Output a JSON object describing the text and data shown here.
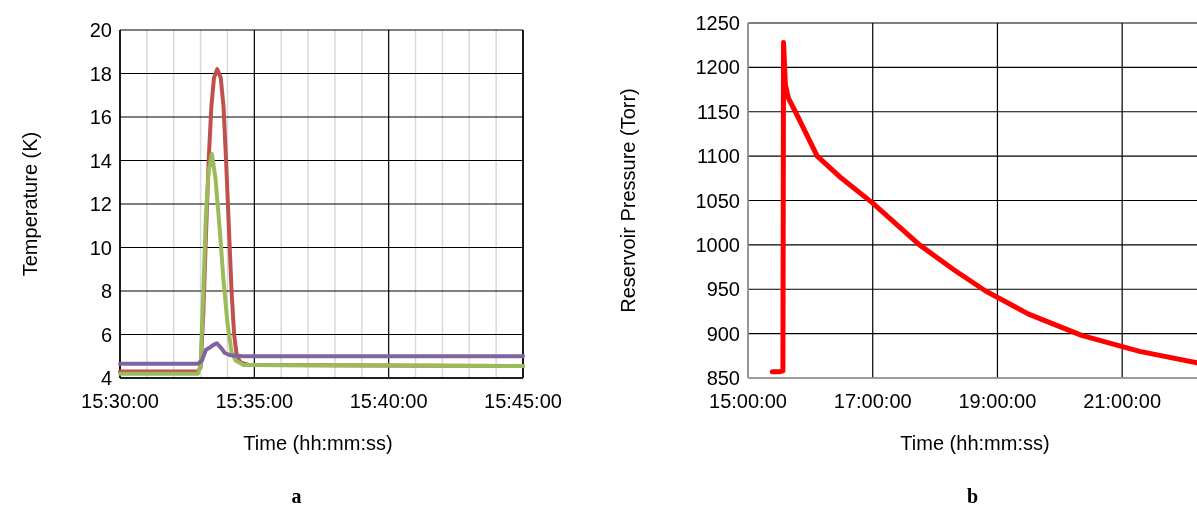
{
  "chart_data": [
    {
      "type": "line",
      "xlabel": "Time (hh:mm:ss)",
      "ylabel": "Temperature (K)",
      "annotations": [
        "a"
      ],
      "grid": true,
      "xlim": [
        15.5,
        15.75
      ],
      "ylim": [
        4,
        20
      ],
      "xticks": [
        {
          "value": 15.5,
          "label": "15:30:00"
        },
        {
          "value": 15.51667,
          "label": null
        },
        {
          "value": 15.53333,
          "label": null
        },
        {
          "value": 15.55,
          "label": null
        },
        {
          "value": 15.56667,
          "label": null
        },
        {
          "value": 15.58333,
          "label": "15:35:00"
        },
        {
          "value": 15.6,
          "label": null
        },
        {
          "value": 15.61667,
          "label": null
        },
        {
          "value": 15.63333,
          "label": null
        },
        {
          "value": 15.65,
          "label": null
        },
        {
          "value": 15.66667,
          "label": "15:40:00"
        },
        {
          "value": 15.68333,
          "label": null
        },
        {
          "value": 15.7,
          "label": null
        },
        {
          "value": 15.71667,
          "label": null
        },
        {
          "value": 15.73333,
          "label": null
        },
        {
          "value": 15.75,
          "label": "15:45:00"
        }
      ],
      "yticks": [
        4,
        6,
        8,
        10,
        12,
        14,
        16,
        18,
        20
      ],
      "series": [
        {
          "color": "#c0504d",
          "x": [
            15.5,
            15.5483,
            15.55,
            15.5517,
            15.5533,
            15.555,
            15.5567,
            15.5583,
            15.5603,
            15.5625,
            15.5642,
            15.5658,
            15.5675,
            15.5692,
            15.5708,
            15.5725,
            15.575,
            15.58,
            15.75
          ],
          "values": [
            4.3,
            4.3,
            4.5,
            7,
            10.5,
            14,
            16.5,
            17.8,
            18.2,
            17.8,
            16.5,
            14,
            11,
            8,
            6,
            5,
            4.7,
            4.6,
            4.55
          ]
        },
        {
          "color": "#9bbb59",
          "x": [
            15.5,
            15.5483,
            15.55,
            15.5517,
            15.5533,
            15.555,
            15.557,
            15.5592,
            15.5617,
            15.5642,
            15.5667,
            15.5692,
            15.5717,
            15.5767,
            15.75
          ],
          "values": [
            4.2,
            4.2,
            4.6,
            8,
            11.5,
            13.5,
            14.3,
            13.2,
            11,
            8.5,
            6.5,
            5.2,
            4.8,
            4.6,
            4.55
          ]
        },
        {
          "color": "#8064a2",
          "x": [
            15.5,
            15.5483,
            15.5508,
            15.5533,
            15.5558,
            15.5575,
            15.56,
            15.5625,
            15.565,
            15.5683,
            15.5767,
            15.75
          ],
          "values": [
            4.65,
            4.65,
            4.8,
            5.3,
            5.4,
            5.5,
            5.6,
            5.4,
            5.15,
            5.05,
            5.0,
            5.0
          ]
        }
      ]
    },
    {
      "type": "line",
      "xlabel": "Time (hh:mm:ss)",
      "ylabel": "Reservoir Pressure (Torr)",
      "annotations": [
        "b"
      ],
      "grid": true,
      "xlim": [
        15,
        22.2
      ],
      "ylim": [
        850,
        1250
      ],
      "xticks": [
        {
          "value": 15,
          "label": "15:00:00"
        },
        {
          "value": 17,
          "label": "17:00:00"
        },
        {
          "value": 19,
          "label": "19:00:00"
        },
        {
          "value": 21,
          "label": "21:00:00"
        }
      ],
      "yticks": [
        850,
        900,
        950,
        1000,
        1050,
        1100,
        1150,
        1200,
        1250
      ],
      "series": [
        {
          "color": "#ff0000",
          "x": [
            15.39,
            15.5,
            15.56,
            15.57,
            15.6,
            15.65,
            15.76,
            16.11,
            16.5,
            17.0,
            17.75,
            18.3,
            18.81,
            19.5,
            20.35,
            21.28,
            22.2
          ],
          "values": [
            857,
            857,
            858,
            1228,
            1180,
            1165,
            1150,
            1100,
            1075,
            1047,
            1000,
            972,
            948,
            922,
            898,
            880,
            867
          ]
        }
      ]
    }
  ]
}
